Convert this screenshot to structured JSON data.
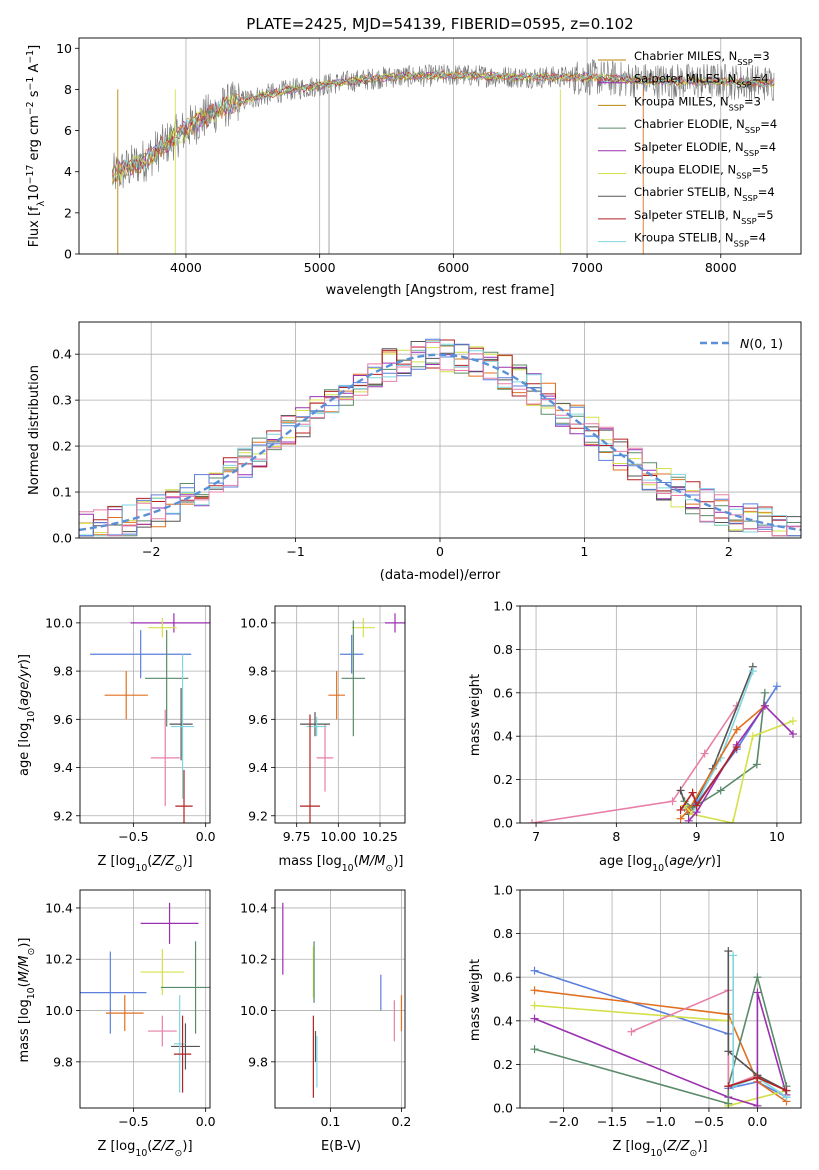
{
  "figure": {
    "title": "PLATE=2425, MJD=54139, FIBERID=0595, z=0.102"
  },
  "colors": {
    "palette": [
      "#b8860b",
      "#5a8a6a",
      "#9b30b0",
      "#d4e04a",
      "#555555",
      "#b22222",
      "#7fd6e0",
      "#e89a2a",
      "#5b7fdc",
      "#e87fa8",
      "#e07020"
    ],
    "normal_curve": "#5b8fd6",
    "grid": "#b0b0b0"
  },
  "chart_data": [
    {
      "id": "spectrum",
      "type": "line",
      "title": "PLATE=2425, MJD=54139, FIBERID=0595, z=0.102",
      "xlabel": "wavelength [Angstrom, rest frame]",
      "ylabel": "Flux [f_λ10^-17 erg cm^-2 s^-1 A^-1]",
      "xlim": [
        3200,
        8600
      ],
      "ylim": [
        0,
        10.5
      ],
      "xticks": [
        4000,
        5000,
        6000,
        7000,
        8000
      ],
      "yticks": [
        0,
        2,
        4,
        6,
        8,
        10
      ],
      "grid": "x only",
      "legend_position": "top-right",
      "series": [
        {
          "name": "Chabrier MILES, N_SSP=3",
          "color": "#b8860b"
        },
        {
          "name": "Salpeter MILES, N_SSP=4",
          "color": "#9b30b0"
        },
        {
          "name": "Kroupa MILES, N_SSP=3",
          "color": "#b8860b"
        },
        {
          "name": "Chabrier ELODIE, N_SSP=4",
          "color": "#5a8a6a"
        },
        {
          "name": "Salpeter ELODIE, N_SSP=4",
          "color": "#9b30b0"
        },
        {
          "name": "Kroupa ELODIE, N_SSP=5",
          "color": "#d4e04a"
        },
        {
          "name": "Chabrier STELIB, N_SSP=4",
          "color": "#555555"
        },
        {
          "name": "Salpeter STELIB, N_SSP=5",
          "color": "#b22222"
        },
        {
          "name": "Kroupa STELIB, N_SSP=4",
          "color": "#7fd6e0"
        }
      ],
      "continuum_points": [
        [
          3450,
          3.8
        ],
        [
          3700,
          4.6
        ],
        [
          3900,
          5.6
        ],
        [
          4100,
          6.5
        ],
        [
          4300,
          7.2
        ],
        [
          4500,
          7.6
        ],
        [
          4800,
          8.0
        ],
        [
          5100,
          8.3
        ],
        [
          5500,
          8.6
        ],
        [
          6000,
          8.7
        ],
        [
          6500,
          8.6
        ],
        [
          7000,
          8.6
        ],
        [
          7500,
          8.4
        ],
        [
          8000,
          8.4
        ],
        [
          8400,
          8.3
        ]
      ]
    },
    {
      "id": "residuals",
      "type": "histogram",
      "xlabel": "(data-model)/error",
      "ylabel": "Normed distribution",
      "xlim": [
        -2.5,
        2.5
      ],
      "ylim": [
        0,
        0.47
      ],
      "xticks": [
        -2,
        -1,
        0,
        1,
        2
      ],
      "yticks": [
        0.0,
        0.1,
        0.2,
        0.3,
        0.4
      ],
      "grid": "on",
      "legend_position": "top-right",
      "legend_label": "N(0,1)",
      "bin_width": 0.1,
      "normal": {
        "mean": 0,
        "sigma": 1,
        "color": "#5b8fd6"
      }
    },
    {
      "id": "age-vs-Z",
      "type": "scatter",
      "xlabel": "Z [log10(Z/Z_sun)]",
      "ylabel": "age [log10(age/yr)]",
      "xlim": [
        -0.87,
        0.03
      ],
      "ylim": [
        9.17,
        10.07
      ],
      "xticks": [
        -0.5,
        0.0
      ],
      "yticks": [
        9.2,
        9.4,
        9.6,
        9.8,
        10.0
      ],
      "grid": "on",
      "points": [
        {
          "x": -0.45,
          "y": 9.87,
          "xerr": 0.35,
          "yerr": 0.1,
          "color": "#5b7fdc"
        },
        {
          "x": -0.55,
          "y": 9.7,
          "xerr": 0.15,
          "yerr": 0.1,
          "color": "#e07020"
        },
        {
          "x": -0.22,
          "y": 10.0,
          "xerr": 0.3,
          "yerr": 0.04,
          "color": "#9b30b0"
        },
        {
          "x": -0.3,
          "y": 9.98,
          "xerr": 0.1,
          "yerr": 0.04,
          "color": "#d4e04a"
        },
        {
          "x": -0.27,
          "y": 9.77,
          "xerr": 0.15,
          "yerr": 0.2,
          "color": "#5a8a6a"
        },
        {
          "x": -0.28,
          "y": 9.44,
          "xerr": 0.1,
          "yerr": 0.2,
          "color": "#e87fa8"
        },
        {
          "x": -0.17,
          "y": 9.58,
          "xerr": 0.08,
          "yerr": 0.15,
          "color": "#555555"
        },
        {
          "x": -0.16,
          "y": 9.57,
          "xerr": 0.08,
          "yerr": 0.3,
          "color": "#7fd6e0"
        },
        {
          "x": -0.15,
          "y": 9.24,
          "xerr": 0.06,
          "yerr": 0.15,
          "color": "#b22222"
        }
      ]
    },
    {
      "id": "age-vs-mass",
      "type": "scatter",
      "xlabel": "mass [log10(M/M_sun)]",
      "ylabel": "",
      "xlim": [
        9.62,
        10.4
      ],
      "ylim": [
        9.17,
        10.07
      ],
      "xticks": [
        9.75,
        10.0,
        10.25
      ],
      "xticklabels": [
        "9.75",
        "10.00",
        "10.25"
      ],
      "yticks": [
        9.2,
        9.4,
        9.6,
        9.8,
        10.0
      ],
      "grid": "on",
      "points": [
        {
          "x": 10.08,
          "y": 9.87,
          "xerr": 0.07,
          "yerr": 0.08,
          "color": "#5b7fdc"
        },
        {
          "x": 9.99,
          "y": 9.7,
          "xerr": 0.05,
          "yerr": 0.1,
          "color": "#e07020"
        },
        {
          "x": 10.34,
          "y": 10.0,
          "xerr": 0.06,
          "yerr": 0.04,
          "color": "#9b30b0"
        },
        {
          "x": 10.15,
          "y": 9.98,
          "xerr": 0.07,
          "yerr": 0.04,
          "color": "#d4e04a"
        },
        {
          "x": 10.09,
          "y": 9.77,
          "xerr": 0.07,
          "yerr": 0.24,
          "color": "#5a8a6a"
        },
        {
          "x": 9.92,
          "y": 9.44,
          "xerr": 0.05,
          "yerr": 0.14,
          "color": "#e87fa8"
        },
        {
          "x": 9.86,
          "y": 9.58,
          "xerr": 0.09,
          "yerr": 0.05,
          "color": "#555555"
        },
        {
          "x": 9.87,
          "y": 9.57,
          "xerr": 0.06,
          "yerr": 0.04,
          "color": "#7fd6e0"
        },
        {
          "x": 9.83,
          "y": 9.24,
          "xerr": 0.06,
          "yerr": 0.38,
          "color": "#b22222"
        }
      ]
    },
    {
      "id": "weight-vs-age",
      "type": "line",
      "xlabel": "age [log10(age/yr)]",
      "ylabel": "mass weight",
      "xlim": [
        6.8,
        10.3
      ],
      "ylim": [
        0,
        1.0
      ],
      "xticks": [
        7,
        8,
        9,
        10
      ],
      "yticks": [
        0.0,
        0.2,
        0.4,
        0.6,
        0.8,
        1.0
      ],
      "grid": "on",
      "series": [
        {
          "color": "#e87fa8",
          "x": [
            6.95,
            8.7,
            9.1,
            9.5
          ],
          "y": [
            0.0,
            0.1,
            0.32,
            0.54
          ]
        },
        {
          "color": "#555555",
          "x": [
            8.8,
            8.9,
            9.2,
            9.7
          ],
          "y": [
            0.15,
            0.04,
            0.25,
            0.72
          ]
        },
        {
          "color": "#7fd6e0",
          "x": [
            8.85,
            8.95,
            9.3,
            9.7
          ],
          "y": [
            0.1,
            0.06,
            0.3,
            0.7
          ]
        },
        {
          "color": "#5b7fdc",
          "x": [
            8.85,
            9.0,
            9.5,
            10.0
          ],
          "y": [
            0.07,
            0.09,
            0.34,
            0.63
          ]
        },
        {
          "color": "#5a8a6a",
          "x": [
            8.85,
            8.95,
            9.3,
            9.75,
            9.85
          ],
          "y": [
            0.1,
            0.07,
            0.15,
            0.27,
            0.6
          ]
        },
        {
          "color": "#e07020",
          "x": [
            8.8,
            8.9,
            9.5,
            9.85
          ],
          "y": [
            0.02,
            0.06,
            0.43,
            0.54
          ]
        },
        {
          "color": "#d4e04a",
          "x": [
            8.85,
            8.95,
            9.45,
            9.7,
            10.2
          ],
          "y": [
            0.08,
            0.04,
            0.0,
            0.4,
            0.47
          ]
        },
        {
          "color": "#9b30b0",
          "x": [
            8.9,
            9.0,
            9.5,
            9.85,
            10.2
          ],
          "y": [
            0.01,
            0.05,
            0.36,
            0.54,
            0.41
          ]
        },
        {
          "color": "#b22222",
          "x": [
            8.8,
            8.95,
            9.0,
            9.5
          ],
          "y": [
            0.06,
            0.14,
            0.08,
            0.35
          ]
        }
      ]
    },
    {
      "id": "mass-vs-Z",
      "type": "scatter",
      "xlabel": "Z [log10(Z/Z_sun)]",
      "ylabel": "mass [log10(M/M_sun)]",
      "xlim": [
        -0.87,
        0.03
      ],
      "ylim": [
        9.62,
        10.47
      ],
      "xticks": [
        -0.5,
        0.0
      ],
      "yticks": [
        9.8,
        10.0,
        10.2,
        10.4
      ],
      "grid": "on",
      "points": [
        {
          "x": -0.66,
          "y": 10.07,
          "xerr": 0.25,
          "yerr": 0.16,
          "color": "#5b7fdc"
        },
        {
          "x": -0.56,
          "y": 9.99,
          "xerr": 0.13,
          "yerr": 0.07,
          "color": "#e07020"
        },
        {
          "x": -0.25,
          "y": 10.34,
          "xerr": 0.2,
          "yerr": 0.08,
          "color": "#9b30b0"
        },
        {
          "x": -0.3,
          "y": 10.15,
          "xerr": 0.15,
          "yerr": 0.09,
          "color": "#d4e04a"
        },
        {
          "x": -0.07,
          "y": 10.09,
          "xerr": 0.24,
          "yerr": 0.18,
          "color": "#5a8a6a"
        },
        {
          "x": -0.3,
          "y": 9.92,
          "xerr": 0.1,
          "yerr": 0.06,
          "color": "#e87fa8"
        },
        {
          "x": -0.14,
          "y": 9.86,
          "xerr": 0.1,
          "yerr": 0.09,
          "color": "#555555"
        },
        {
          "x": -0.18,
          "y": 9.87,
          "xerr": 0.04,
          "yerr": 0.19,
          "color": "#7fd6e0"
        },
        {
          "x": -0.16,
          "y": 9.83,
          "xerr": 0.06,
          "yerr": 0.15,
          "color": "#b22222"
        }
      ]
    },
    {
      "id": "mass-vs-ebv",
      "type": "scatter",
      "xlabel": "E(B-V)",
      "ylabel": "",
      "xlim": [
        0.022,
        0.205
      ],
      "ylim": [
        9.62,
        10.47
      ],
      "xticks": [
        0.1,
        0.2
      ],
      "yticks": [
        9.8,
        10.0,
        10.2,
        10.4
      ],
      "grid": "on",
      "points": [
        {
          "x": 0.171,
          "y": 10.07,
          "xerr": 0,
          "yerr": 0.07,
          "color": "#5b7fdc"
        },
        {
          "x": 0.2,
          "y": 9.99,
          "xerr": 0,
          "yerr": 0.07,
          "color": "#e07020"
        },
        {
          "x": 0.033,
          "y": 10.28,
          "xerr": 0,
          "yerr": 0.14,
          "color": "#9b30b0"
        },
        {
          "x": 0.076,
          "y": 10.15,
          "xerr": 0,
          "yerr": 0.1,
          "color": "#d4e04a"
        },
        {
          "x": 0.077,
          "y": 10.15,
          "xerr": 0,
          "yerr": 0.12,
          "color": "#5a8a6a"
        },
        {
          "x": 0.19,
          "y": 9.96,
          "xerr": 0,
          "yerr": 0.08,
          "color": "#e87fa8"
        },
        {
          "x": 0.079,
          "y": 9.86,
          "xerr": 0,
          "yerr": 0.06,
          "color": "#555555"
        },
        {
          "x": 0.081,
          "y": 9.8,
          "xerr": 0,
          "yerr": 0.1,
          "color": "#7fd6e0"
        },
        {
          "x": 0.076,
          "y": 9.82,
          "xerr": 0,
          "yerr": 0.16,
          "color": "#b22222"
        }
      ]
    },
    {
      "id": "weight-vs-Z",
      "type": "line",
      "xlabel": "Z [log10(Z/Z_sun)]",
      "ylabel": "mass weight",
      "xlim": [
        -2.45,
        0.45
      ],
      "ylim": [
        0,
        1.0
      ],
      "xticks": [
        -2.0,
        -1.5,
        -1.0,
        -0.5,
        0.0
      ],
      "yticks": [
        0.0,
        0.2,
        0.4,
        0.6,
        0.8,
        1.0
      ],
      "grid": "on",
      "series": [
        {
          "color": "#5b7fdc",
          "x": [
            -2.3,
            -0.3,
            -0.3,
            0.0,
            0.3
          ],
          "y": [
            0.63,
            0.34,
            0.09,
            0.12,
            0.05
          ]
        },
        {
          "color": "#e07020",
          "x": [
            -2.3,
            -0.3,
            0.0,
            0.3
          ],
          "y": [
            0.54,
            0.43,
            0.12,
            0.03
          ]
        },
        {
          "color": "#d4e04a",
          "x": [
            -2.3,
            -0.3,
            -0.3,
            0.3
          ],
          "y": [
            0.47,
            0.4,
            0.01,
            0.08
          ]
        },
        {
          "color": "#9b30b0",
          "x": [
            -2.3,
            -0.3,
            0.0,
            0.0,
            0.3
          ],
          "y": [
            0.41,
            0.05,
            0.01,
            0.53,
            0.06
          ]
        },
        {
          "color": "#5a8a6a",
          "x": [
            -2.3,
            -0.3,
            -0.3,
            0.0,
            0.3
          ],
          "y": [
            0.27,
            0.02,
            0.1,
            0.6,
            0.1
          ]
        },
        {
          "color": "#e87fa8",
          "x": [
            -1.3,
            -0.3,
            -0.3,
            0.0
          ],
          "y": [
            0.35,
            0.54,
            0.1,
            0.15
          ]
        },
        {
          "color": "#555555",
          "x": [
            -0.3,
            -0.3,
            0.0,
            0.3
          ],
          "y": [
            0.72,
            0.26,
            0.15,
            0.08
          ]
        },
        {
          "color": "#7fd6e0",
          "x": [
            -0.25,
            -0.25,
            0.0,
            0.3
          ],
          "y": [
            0.7,
            0.1,
            0.14,
            0.05
          ]
        },
        {
          "color": "#b22222",
          "x": [
            -0.3,
            0.0,
            0.3
          ],
          "y": [
            0.1,
            0.14,
            0.08
          ]
        }
      ]
    }
  ]
}
